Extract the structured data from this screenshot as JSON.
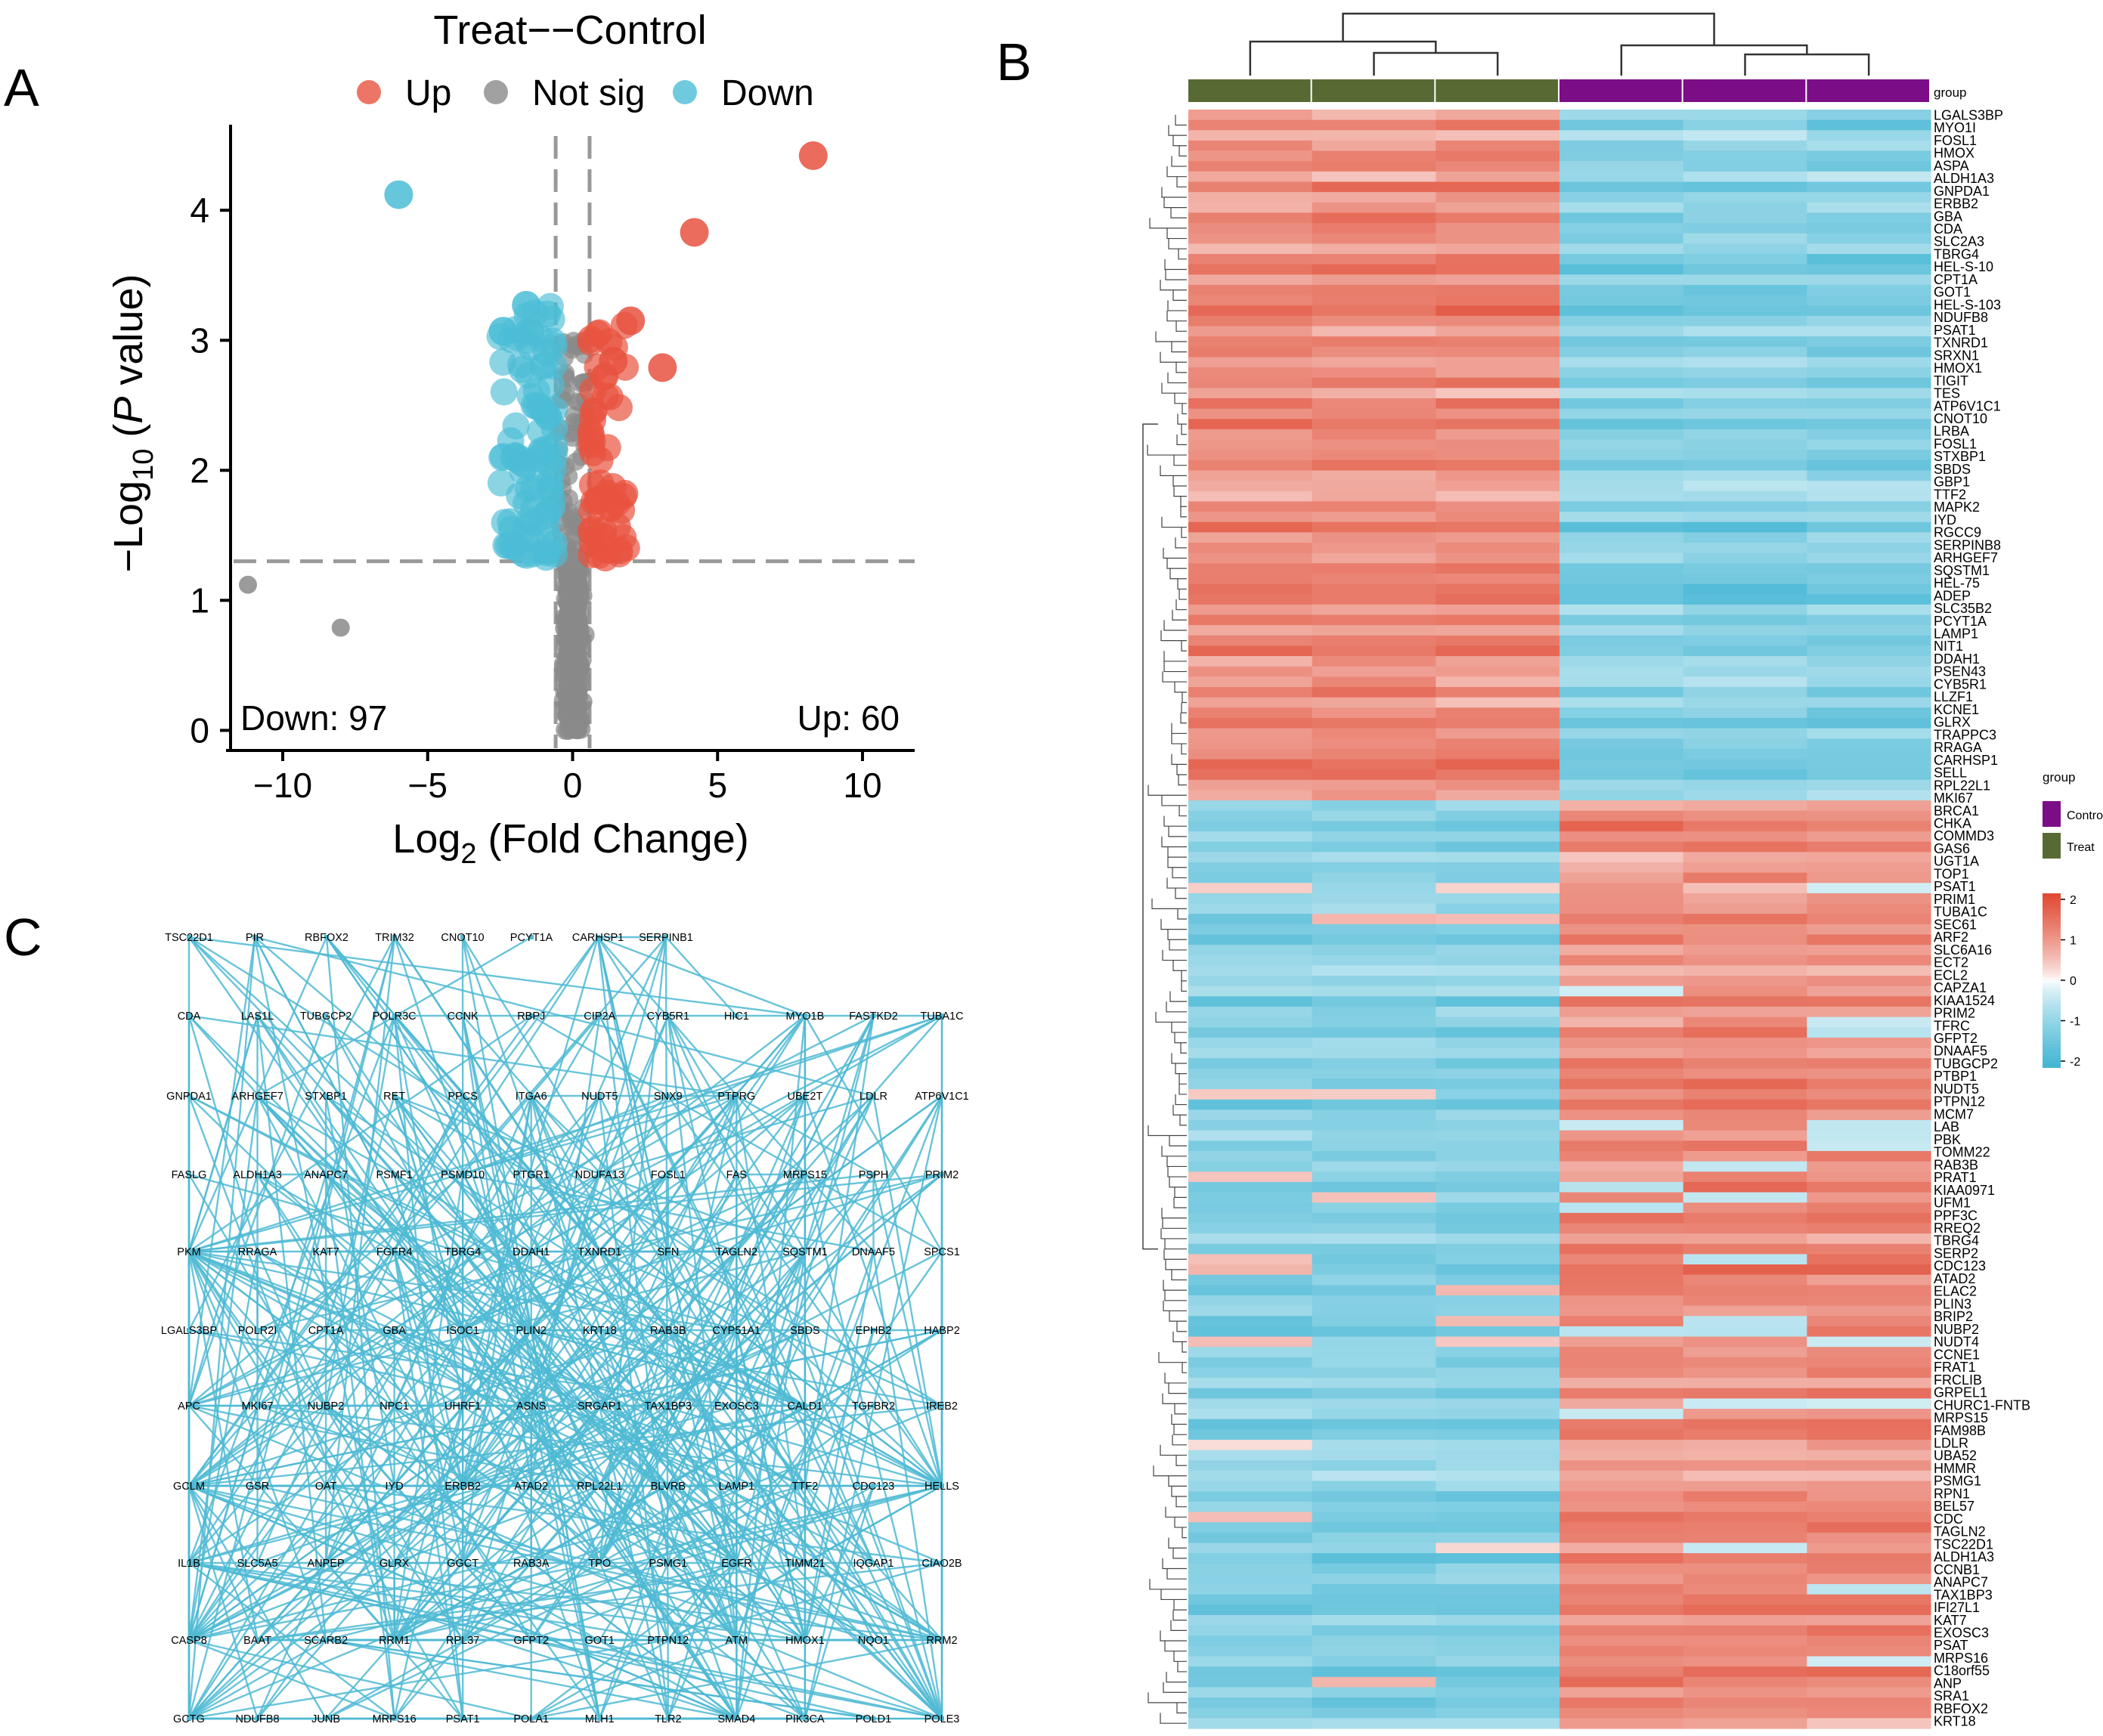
{
  "panels": {
    "a": "A",
    "b": "B",
    "c": "C"
  },
  "colors": {
    "up": "#e8523f",
    "down": "#4bbdd6",
    "notsig": "#8a8a8a",
    "treat": "#586a34",
    "control": "#7b0d86",
    "heat_low": "#44b6d4",
    "heat_mid": "#ffffff",
    "heat_high": "#e04a33",
    "network_edge": "#4fbad3"
  },
  "volcano": {
    "chart_data": {
      "type": "scatter",
      "title": "Treat−−Control",
      "xlabel_main": "Log",
      "xlabel_sub": "2",
      "xlabel_rest": " (Fold Change)",
      "ylabel_prefix": "−Log",
      "ylabel_sub": "10",
      "ylabel_rest_open": " (",
      "ylabel_italic": "P",
      "ylabel_rest_close": " value)",
      "xlim": [
        -11.8,
        11.8
      ],
      "ylim": [
        -0.05,
        4.6
      ],
      "x_ticks": [
        -10,
        -5,
        0,
        5,
        10
      ],
      "x_tick_labels": [
        "−10",
        "−5",
        "0",
        "5",
        "10"
      ],
      "y_ticks": [
        0,
        1,
        2,
        3,
        4
      ],
      "y_tick_labels": [
        "0",
        "1",
        "2",
        "3",
        "4"
      ],
      "fc_threshold": 0.585,
      "p_threshold_log": 1.301,
      "legend": [
        {
          "label": "Up",
          "color_key": "up"
        },
        {
          "label": "Not sig",
          "color_key": "notsig"
        },
        {
          "label": "Down",
          "color_key": "down"
        }
      ],
      "down_count_label": "Down: 97",
      "up_count_label": "Up: 60",
      "highlight_points": [
        {
          "x": 8.3,
          "y": 4.42,
          "group": "up"
        },
        {
          "x": 4.2,
          "y": 3.83,
          "group": "up"
        },
        {
          "x": 3.1,
          "y": 2.79,
          "group": "up"
        },
        {
          "x": 2.0,
          "y": 3.15,
          "group": "up"
        },
        {
          "x": 1.4,
          "y": 2.84,
          "group": "up"
        },
        {
          "x": -6.0,
          "y": 4.12,
          "group": "down"
        },
        {
          "x": -2.4,
          "y": 3.07,
          "group": "down"
        },
        {
          "x": -1.6,
          "y": 3.27,
          "group": "down"
        },
        {
          "x": -2.0,
          "y": 2.1,
          "group": "down"
        },
        {
          "x": -11.2,
          "y": 1.12,
          "group": "notsig"
        },
        {
          "x": -8.0,
          "y": 0.79,
          "group": "notsig"
        }
      ]
    }
  },
  "heatmap": {
    "group_label": "group",
    "legend_title": "group",
    "legend_items": [
      {
        "label": "Control",
        "color_key": "control"
      },
      {
        "label": "Treat",
        "color_key": "treat"
      }
    ],
    "scale_ticks": [
      "2",
      "1",
      "0",
      "-1",
      "-2"
    ],
    "chart_data": {
      "type": "heatmap",
      "columns": [
        "Treat",
        "Treat",
        "Treat",
        "Control",
        "Control",
        "Control"
      ],
      "row_count": 157,
      "value_range": [
        -2,
        2
      ],
      "gene_labels": [
        "LGALS3BP",
        "MYO1I",
        "FOSL1",
        "HMOX",
        "ASPA",
        "ALDH1A3",
        "GNPDA1",
        "ERBB2",
        "GBA",
        "CDA",
        "SLC2A3",
        "TBRG4",
        "HEL-S-10",
        "CPT1A",
        "GOT1",
        "HEL-S-103",
        "NDUFB8",
        "PSAT1",
        "TXNRD1",
        "SRXN1",
        "HMOX1",
        "TIGIT",
        "TES",
        "ATP6V1C1",
        "CNOT10",
        "LRBA",
        "FOSL1",
        "STXBP1",
        "SBDS",
        "GBP1",
        "TTF2",
        "MAPK2",
        "IYD",
        "RGCC9",
        "SERPINB8",
        "ARHGEF7",
        "SQSTM1",
        "HEL-75",
        "ADEP",
        "SLC35B2",
        "PCYT1A",
        "LAMP1",
        "NIT1",
        "DDAH1",
        "PSEN43",
        "CYB5R1",
        "LLZF1",
        "KCNE1",
        "GLRX",
        "TRAPPC3",
        "RRAGA",
        "CARHSP1",
        "SELL",
        "RPL22L1",
        "MKI67",
        "BRCA1",
        "CHKA",
        "COMMD3",
        "GAS6",
        "UGT1A",
        "TOP1",
        "PSAT1",
        "PRIM1",
        "TUBA1C",
        "SEC61",
        "ARF2",
        "SLC6A16",
        "ECT2",
        "ECL2",
        "CAPZA1",
        "KIAA1524",
        "PRIM2",
        "TFRC",
        "GFPT2",
        "DNAAF5",
        "TUBGCP2",
        "PTBP1",
        "NUDT5",
        "PTPN12",
        "MCM7",
        "LAB",
        "PBK",
        "TOMM22",
        "RAB3B",
        "PRAT1",
        "KIAA0971",
        "UFM1",
        "PPF3C",
        "RREQ2",
        "TBRG4",
        "SERP2",
        "CDC123",
        "ATAD2",
        "ELAC2",
        "PLIN3",
        "BRIP2",
        "NUBP2",
        "NUDT4",
        "CCNE1",
        "FRAT1",
        "FRCLIB",
        "GRPEL1",
        "CHURC1-FNTB",
        "MRPS15",
        "FAM98B",
        "LDLR",
        "UBA52",
        "HMMR",
        "PSMG1",
        "RPN1",
        "BEL57",
        "CDC",
        "TAGLN2",
        "TSC22D1",
        "ALDH1A3",
        "CCNB1",
        "ANAPC7",
        "TAX1BP3",
        "IFI27L1",
        "KAT7",
        "EXOSC3",
        "PSAT",
        "MRPS16",
        "C18orf55",
        "ANP",
        "SRA1",
        "RBFOX2",
        "KRT18"
      ]
    }
  },
  "network": {
    "rows": [
      [
        "TSC22D1",
        "PIR",
        "RBFOX2",
        "TRIM32",
        "CNOT10",
        "PCYT1A",
        "CARHSP1",
        "SERPINB1"
      ],
      [
        "CDA",
        "LAS1L",
        "TUBGCP2",
        "POLR3C",
        "CCNK",
        "RBPJ",
        "CIP2A",
        "CYB5R1",
        "HIC1",
        "MYO1B",
        "FASTKD2",
        "TUBA1C"
      ],
      [
        "GNPDA1",
        "ARHGEF7",
        "STXBP1",
        "RET",
        "PPCS",
        "ITGA6",
        "NUDT5",
        "SNX9",
        "PTPRG",
        "UBE2T",
        "LDLR",
        "ATP6V1C1"
      ],
      [
        "FASLG",
        "ALDH1A3",
        "ANAPC7",
        "PSMF1",
        "PSMD10",
        "PTGR1",
        "NDUFA13",
        "FOSL1",
        "FAS",
        "MRPS15",
        "PSPH",
        "PRIM2"
      ],
      [
        "PKM",
        "RRAGA",
        "KAT7",
        "FGFR4",
        "TBRG4",
        "DDAH1",
        "TXNRD1",
        "SFN",
        "TAGLN2",
        "SQSTM1",
        "DNAAF5",
        "SPCS1"
      ],
      [
        "LGALS3BP",
        "POLR2I",
        "CPT1A",
        "GBA",
        "ISOC1",
        "PLIN2",
        "KRT18",
        "RAB3B",
        "CYP51A1",
        "SBDS",
        "EPHB2",
        "HABP2"
      ],
      [
        "APC",
        "MKI67",
        "NUBP2",
        "NPC1",
        "UHRF1",
        "ASNS",
        "SRGAP1",
        "TAX1BP3",
        "EXOSC3",
        "CALD1",
        "TGFBR2",
        "IREB2"
      ],
      [
        "GCLM",
        "GSR",
        "OAT",
        "IYD",
        "ERBB2",
        "ATAD2",
        "RPL22L1",
        "BLVRB",
        "LAMP1",
        "TTF2",
        "CDC123",
        "HELLS"
      ],
      [
        "IL1B",
        "SLC5A5",
        "ANPEP",
        "GLRX",
        "GGCT",
        "RAB3A",
        "TPO",
        "PSMG1",
        "EGFR",
        "TIMM21",
        "IQGAP1",
        "CIAO2B"
      ],
      [
        "CASP8",
        "BAAT",
        "SCARB2",
        "RRM1",
        "RPL37",
        "GFPT2",
        "GOT1",
        "PTPN12",
        "ATM",
        "HMOX1",
        "NQO1",
        "RRM2"
      ],
      [
        "GCTG",
        "NDUFB8",
        "JUNB",
        "MRPS16",
        "PSAT1",
        "POLA1",
        "MLH1",
        "TLR2",
        "SMAD4",
        "PIK3CA",
        "POLD1",
        "POLE3"
      ]
    ]
  }
}
